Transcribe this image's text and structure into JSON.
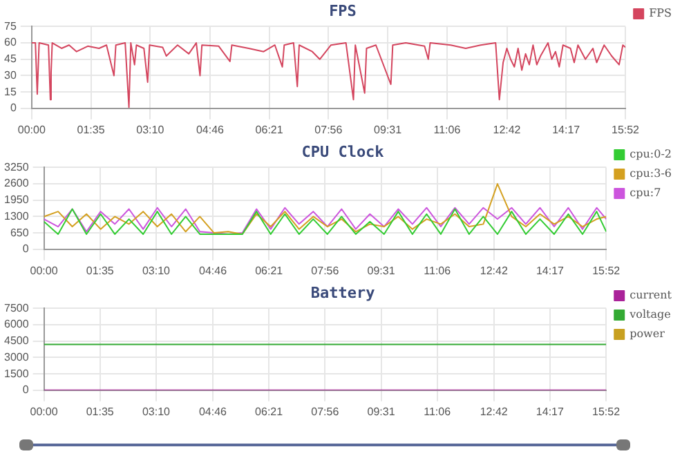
{
  "chart_data": [
    {
      "type": "line",
      "title": "FPS",
      "x": [
        0,
        0.1,
        0.15,
        0.2,
        0.45,
        0.5,
        0.52,
        0.55,
        0.8,
        1.0,
        1.2,
        1.5,
        1.8,
        2.0,
        2.2,
        2.25,
        2.5,
        2.6,
        2.65,
        2.75,
        2.8,
        3.0,
        3.1,
        3.15,
        3.5,
        3.6,
        3.9,
        4.2,
        4.4,
        4.5,
        4.55,
        5.0,
        5.3,
        5.35,
        5.8,
        6.2,
        6.5,
        6.7,
        6.75,
        7.0,
        7.1,
        7.15,
        7.5,
        7.7,
        8.0,
        8.4,
        8.6,
        8.65,
        8.9,
        8.95,
        9.2,
        9.6,
        9.65,
        10.0,
        10.5,
        10.6,
        10.65,
        11.2,
        11.6,
        12.0,
        12.4,
        12.5,
        12.6,
        12.7,
        12.8,
        12.9,
        13.0,
        13.1,
        13.2,
        13.3,
        13.4,
        13.5,
        13.6,
        13.8,
        13.9,
        14.0,
        14.1,
        14.2,
        14.4,
        14.5,
        14.6,
        14.8,
        15.0,
        15.1,
        15.3,
        15.5,
        15.7,
        15.8,
        15.87
      ],
      "series": [
        {
          "name": "FPS",
          "color": "#d4455e",
          "values": [
            60,
            60,
            13,
            60,
            58,
            8,
            33,
            60,
            55,
            58,
            52,
            57,
            55,
            58,
            30,
            58,
            60,
            1,
            60,
            40,
            58,
            55,
            24,
            58,
            56,
            48,
            58,
            50,
            60,
            30,
            58,
            57,
            43,
            58,
            55,
            52,
            58,
            38,
            58,
            60,
            20,
            58,
            52,
            45,
            58,
            60,
            8,
            58,
            14,
            55,
            58,
            22,
            58,
            60,
            57,
            45,
            60,
            58,
            55,
            58,
            60,
            8,
            42,
            55,
            45,
            38,
            55,
            35,
            50,
            40,
            58,
            40,
            48,
            60,
            45,
            52,
            38,
            58,
            55,
            42,
            58,
            45,
            55,
            42,
            58,
            48,
            40,
            58,
            56
          ]
        }
      ],
      "xlim": [
        0,
        15.87
      ],
      "xticks": [
        {
          "value": 0,
          "label": "00:00"
        },
        {
          "value": 1.583,
          "label": "01:35"
        },
        {
          "value": 3.167,
          "label": "03:10"
        },
        {
          "value": 4.767,
          "label": "04:46"
        },
        {
          "value": 6.35,
          "label": "06:21"
        },
        {
          "value": 7.933,
          "label": "07:56"
        },
        {
          "value": 9.517,
          "label": "09:31"
        },
        {
          "value": 11.1,
          "label": "11:06"
        },
        {
          "value": 12.7,
          "label": "12:42"
        },
        {
          "value": 14.283,
          "label": "14:17"
        },
        {
          "value": 15.867,
          "label": "15:52"
        }
      ],
      "ylim": [
        0,
        75
      ],
      "yticks": [
        0,
        15,
        30,
        45,
        60,
        75
      ],
      "grid": true,
      "legend": "right",
      "marker": "none",
      "line_style": "solid"
    },
    {
      "type": "line",
      "title": "CPU Clock",
      "x": [
        0,
        0.4,
        0.8,
        1.2,
        1.6,
        2.0,
        2.4,
        2.8,
        3.2,
        3.6,
        4.0,
        4.4,
        4.8,
        5.2,
        5.6,
        6.0,
        6.4,
        6.8,
        7.2,
        7.6,
        8.0,
        8.4,
        8.8,
        9.2,
        9.6,
        10.0,
        10.4,
        10.8,
        11.2,
        11.6,
        12.0,
        12.4,
        12.8,
        13.2,
        13.6,
        14.0,
        14.4,
        14.8,
        15.2,
        15.6,
        15.87
      ],
      "series": [
        {
          "name": "cpu:0-2",
          "color": "#33cc33",
          "values": [
            1100,
            600,
            1600,
            600,
            1400,
            600,
            1200,
            600,
            1500,
            600,
            1300,
            600,
            600,
            600,
            600,
            1500,
            600,
            1400,
            600,
            1200,
            600,
            1300,
            600,
            1100,
            600,
            1500,
            600,
            1400,
            600,
            1600,
            600,
            1300,
            600,
            1500,
            600,
            1200,
            600,
            1400,
            600,
            1500,
            700
          ]
        },
        {
          "name": "cpu:3-6",
          "color": "#d4a020",
          "values": [
            1300,
            1500,
            900,
            1400,
            800,
            1300,
            1000,
            1500,
            900,
            1400,
            700,
            1300,
            650,
            700,
            600,
            1400,
            900,
            1500,
            800,
            1300,
            900,
            1200,
            700,
            1000,
            900,
            1300,
            800,
            1200,
            1000,
            1400,
            900,
            1000,
            2600,
            1300,
            900,
            1400,
            1000,
            1300,
            900,
            1200,
            1300
          ]
        },
        {
          "name": "cpu:7",
          "color": "#cc55dd",
          "values": [
            1200,
            900,
            1600,
            700,
            1500,
            1000,
            1600,
            800,
            1650,
            900,
            1600,
            700,
            650,
            600,
            650,
            1600,
            800,
            1650,
            1000,
            1500,
            900,
            1600,
            800,
            1400,
            900,
            1600,
            1000,
            1650,
            900,
            1650,
            1000,
            1650,
            1200,
            1650,
            1000,
            1650,
            900,
            1650,
            800,
            1650,
            1200
          ]
        }
      ],
      "xlim": [
        0,
        15.87
      ],
      "xticks": [
        {
          "value": 0,
          "label": "00:00"
        },
        {
          "value": 1.583,
          "label": "01:35"
        },
        {
          "value": 3.167,
          "label": "03:10"
        },
        {
          "value": 4.767,
          "label": "04:46"
        },
        {
          "value": 6.35,
          "label": "06:21"
        },
        {
          "value": 7.933,
          "label": "07:56"
        },
        {
          "value": 9.517,
          "label": "09:31"
        },
        {
          "value": 11.1,
          "label": "11:06"
        },
        {
          "value": 12.7,
          "label": "12:42"
        },
        {
          "value": 14.283,
          "label": "14:17"
        },
        {
          "value": 15.867,
          "label": "15:52"
        }
      ],
      "ylim": [
        0,
        3250
      ],
      "yticks": [
        0,
        650,
        1300,
        1950,
        2600,
        3250
      ],
      "grid": true,
      "legend": "right",
      "marker": "none",
      "line_style": "solid"
    },
    {
      "type": "line",
      "title": "Battery",
      "x": [
        0,
        3,
        5,
        5.5,
        6,
        9,
        12,
        15.87
      ],
      "series": [
        {
          "name": "current",
          "color": "#aa2299",
          "values": [
            0,
            0,
            0,
            0,
            0,
            0,
            0,
            0
          ]
        },
        {
          "name": "voltage",
          "color": "#33aa33",
          "values": [
            4200,
            4200,
            4200,
            4200,
            4200,
            4200,
            4200,
            4200
          ]
        },
        {
          "name": "power",
          "color": "#c8a020",
          "values": [
            null,
            null,
            null,
            null,
            null,
            null,
            null,
            null
          ]
        }
      ],
      "xlim": [
        0,
        15.87
      ],
      "xticks": [
        {
          "value": 0,
          "label": "00:00"
        },
        {
          "value": 1.583,
          "label": "01:35"
        },
        {
          "value": 3.167,
          "label": "03:10"
        },
        {
          "value": 4.767,
          "label": "04:46"
        },
        {
          "value": 6.35,
          "label": "06:21"
        },
        {
          "value": 7.933,
          "label": "07:56"
        },
        {
          "value": 9.517,
          "label": "09:31"
        },
        {
          "value": 11.1,
          "label": "11:06"
        },
        {
          "value": 12.7,
          "label": "12:42"
        },
        {
          "value": 14.283,
          "label": "14:17"
        },
        {
          "value": 15.867,
          "label": "15:52"
        }
      ],
      "ylim": [
        0,
        7500
      ],
      "yticks": [
        0,
        1500,
        3000,
        4500,
        6000,
        7500
      ],
      "grid": true,
      "legend": "right",
      "marker": "none",
      "line_style": "solid"
    }
  ]
}
